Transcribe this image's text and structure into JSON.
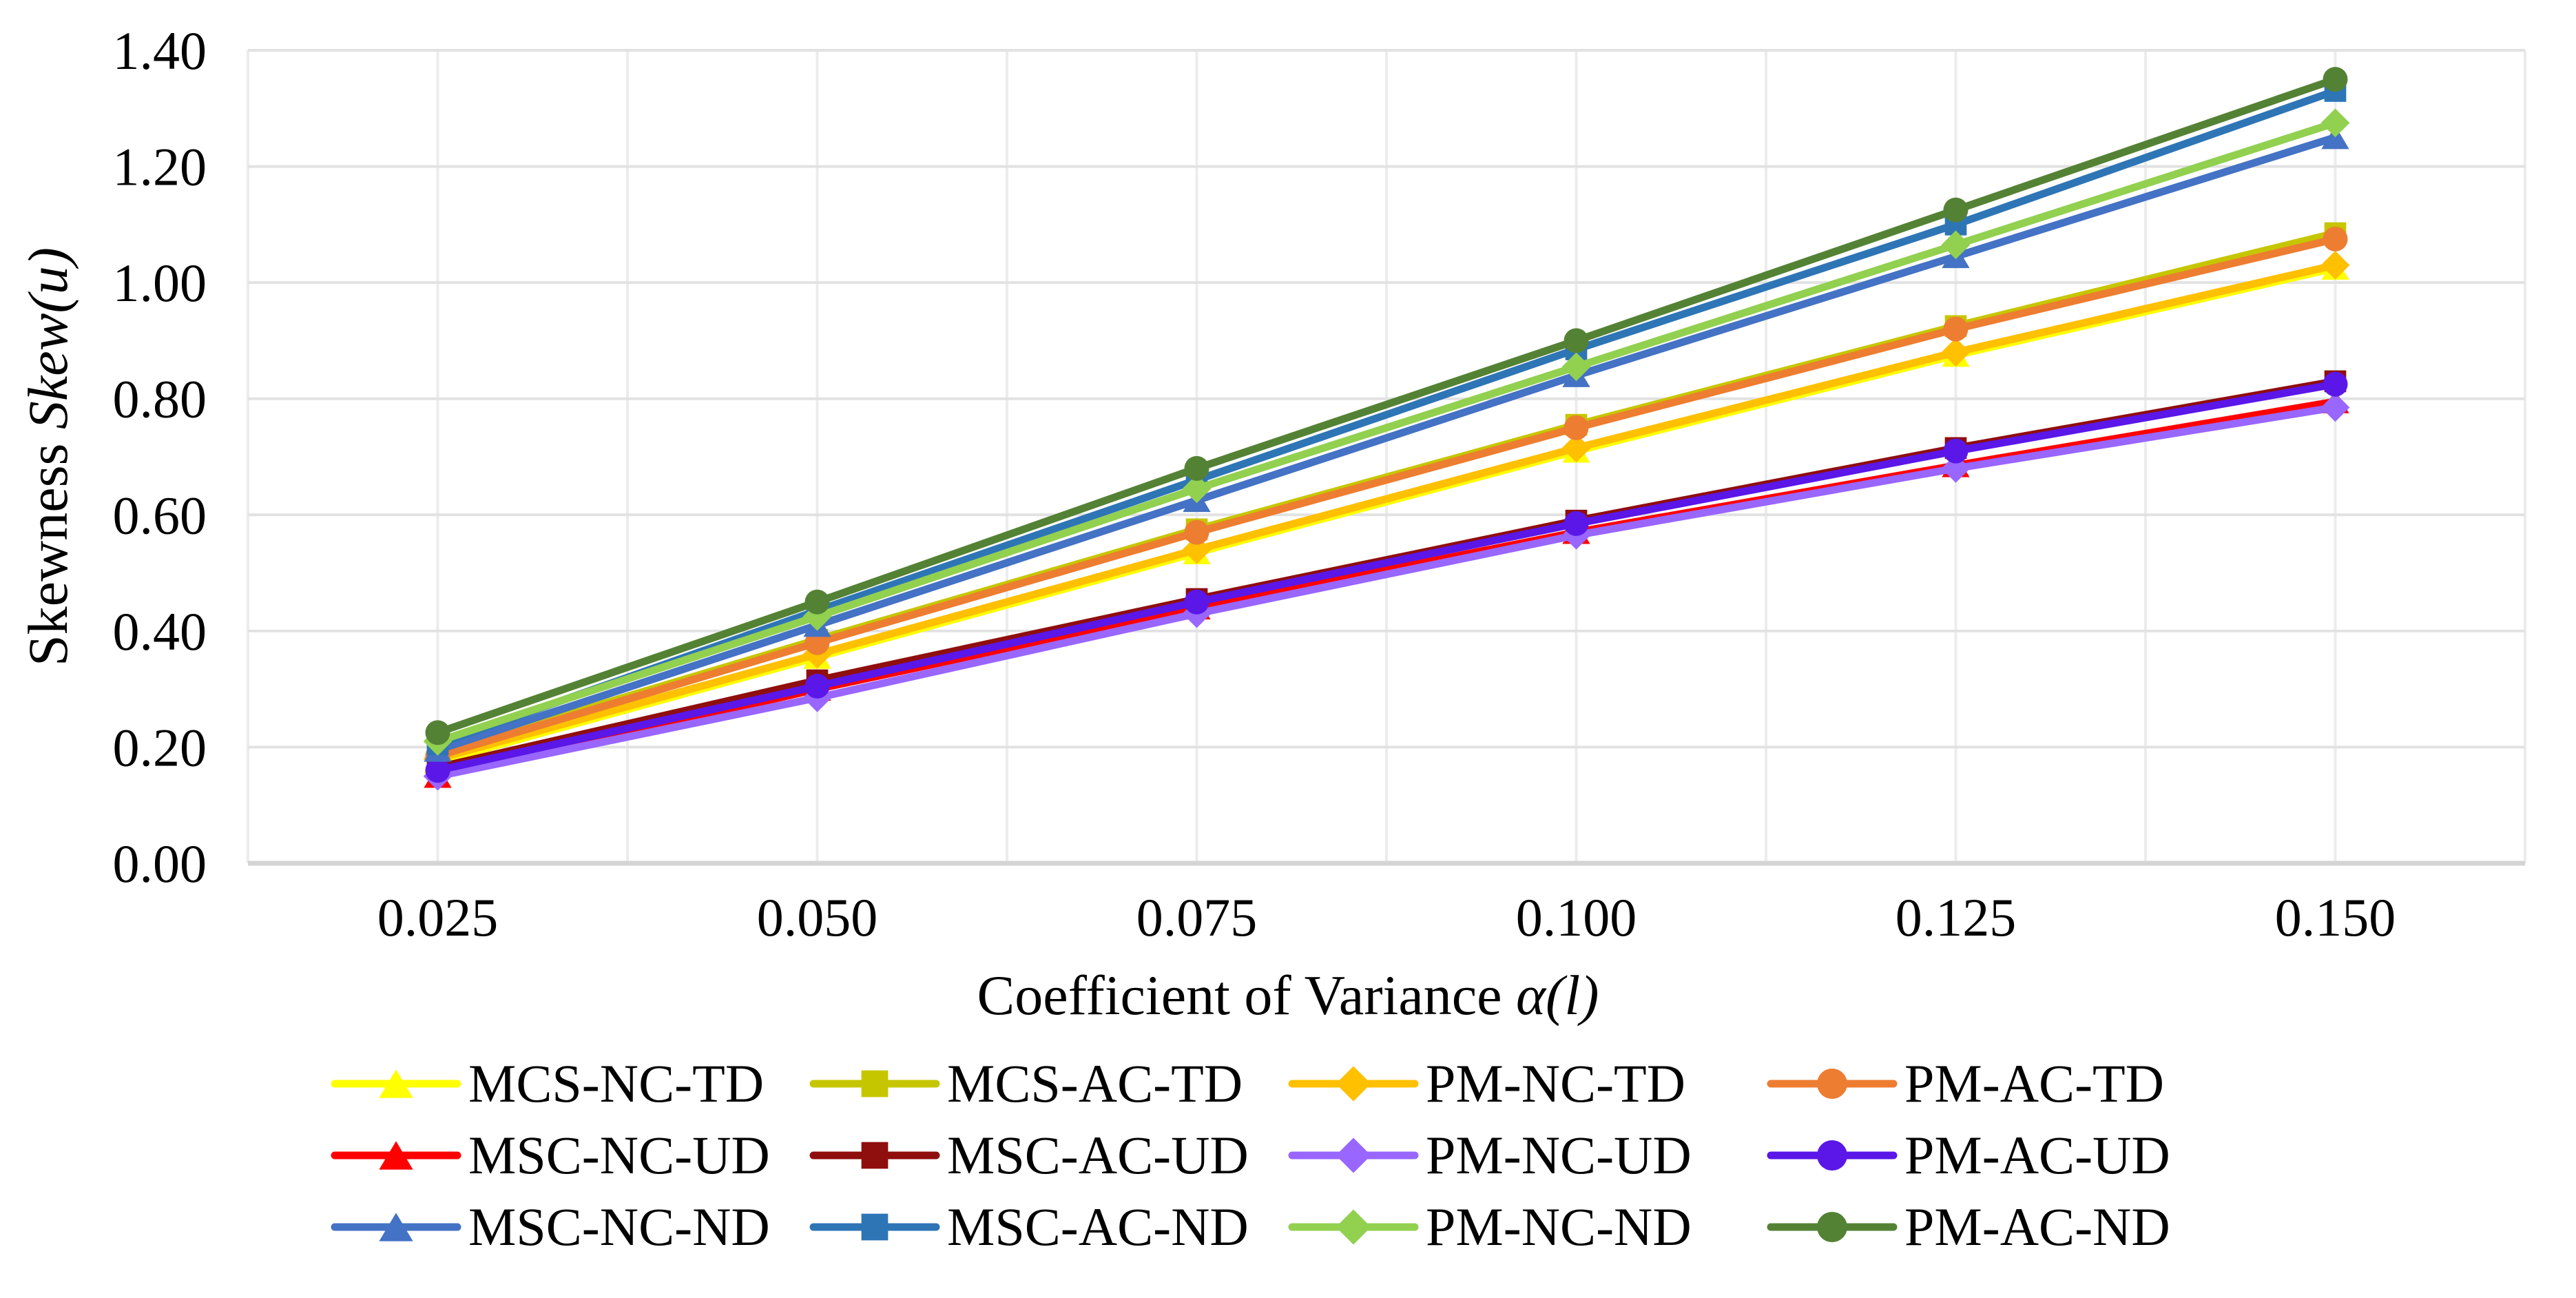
{
  "chart_data": {
    "type": "line",
    "title": "",
    "xlabel_regular": "Coefficient of Variance ",
    "xlabel_italic": "α(l)",
    "ylabel_regular": "Skewness ",
    "ylabel_italic": "Skew(u)",
    "x_categories": [
      "0.025",
      "0.050",
      "0.075",
      "0.100",
      "0.125",
      "0.150"
    ],
    "x_values": [
      0.025,
      0.05,
      0.075,
      0.1,
      0.125,
      0.15
    ],
    "y_ticks": [
      "0.00",
      "0.20",
      "0.40",
      "0.60",
      "0.80",
      "1.00",
      "1.20",
      "1.40"
    ],
    "ylim": [
      0.0,
      1.4
    ],
    "y_step": 0.2,
    "grid": true,
    "gridline_color": "#E2E2E2",
    "vertical_gridline_color": "#ECECEC",
    "axis_line_color": "#D4D4D4",
    "legend_position": "bottom",
    "legend_columns": 4,
    "series": [
      {
        "name": "MCS-NC-TD",
        "color": "#FFFF00",
        "marker": "triangle",
        "values": [
          0.175,
          0.355,
          0.535,
          0.71,
          0.875,
          1.025
        ]
      },
      {
        "name": "MCS-AC-TD",
        "color": "#C6C600",
        "marker": "square",
        "values": [
          0.19,
          0.385,
          0.575,
          0.755,
          0.925,
          1.085
        ]
      },
      {
        "name": "PM-NC-TD",
        "color": "#FFC000",
        "marker": "diamond",
        "values": [
          0.18,
          0.36,
          0.54,
          0.715,
          0.88,
          1.03
        ]
      },
      {
        "name": "PM-AC-TD",
        "color": "#ED7D31",
        "marker": "circle",
        "values": [
          0.185,
          0.38,
          0.57,
          0.75,
          0.92,
          1.075
        ]
      },
      {
        "name": "MSC-NC-UD",
        "color": "#FF0000",
        "marker": "triangle",
        "values": [
          0.15,
          0.3,
          0.44,
          0.57,
          0.685,
          0.795
        ]
      },
      {
        "name": "MSC-AC-UD",
        "color": "#8F0E0E",
        "marker": "square",
        "values": [
          0.165,
          0.315,
          0.455,
          0.59,
          0.715,
          0.83
        ]
      },
      {
        "name": "PM-NC-UD",
        "color": "#9966FF",
        "marker": "diamond",
        "values": [
          0.15,
          0.285,
          0.43,
          0.565,
          0.68,
          0.785
        ]
      },
      {
        "name": "PM-AC-UD",
        "color": "#5A17E8",
        "marker": "circle",
        "values": [
          0.16,
          0.305,
          0.45,
          0.585,
          0.71,
          0.825
        ]
      },
      {
        "name": "MSC-NC-ND",
        "color": "#4472C4",
        "marker": "triangle",
        "values": [
          0.195,
          0.41,
          0.625,
          0.84,
          1.045,
          1.25
        ]
      },
      {
        "name": "MSC-AC-ND",
        "color": "#2E75B6",
        "marker": "square",
        "values": [
          0.205,
          0.435,
          0.66,
          0.885,
          1.1,
          1.33
        ]
      },
      {
        "name": "PM-NC-ND",
        "color": "#92D050",
        "marker": "diamond",
        "values": [
          0.21,
          0.425,
          0.645,
          0.855,
          1.065,
          1.275
        ]
      },
      {
        "name": "PM-AC-ND",
        "color": "#548235",
        "marker": "circle",
        "values": [
          0.225,
          0.45,
          0.68,
          0.9,
          1.125,
          1.35
        ]
      }
    ]
  }
}
